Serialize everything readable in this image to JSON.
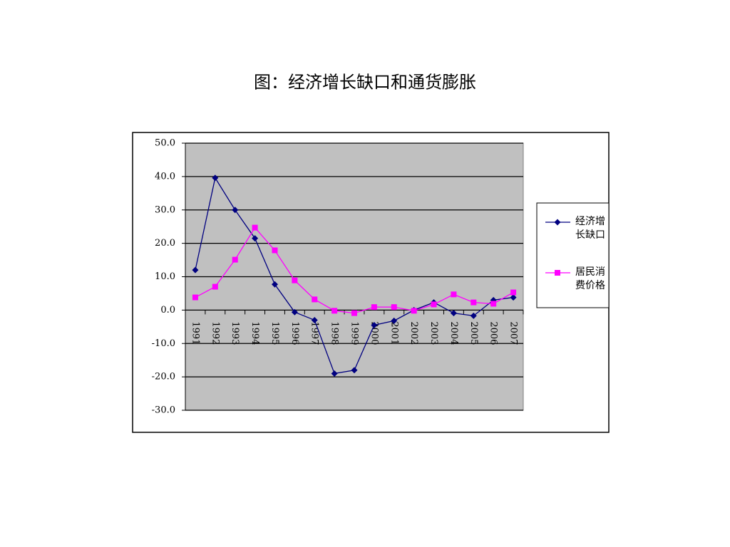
{
  "chart_data": {
    "type": "line",
    "title": "图：经济增长缺口和通货膨胀",
    "categories": [
      "1991",
      "1992",
      "1993",
      "1994",
      "1995",
      "1996",
      "1997",
      "1998",
      "1999",
      "2000",
      "2001",
      "2002",
      "2003",
      "2004",
      "2005",
      "2006",
      "2007"
    ],
    "series": [
      {
        "name": "经济增长缺口",
        "color": "#000080",
        "marker": "diamond",
        "values": [
          12,
          39.6,
          30,
          21.5,
          7.7,
          -0.6,
          -3,
          -19,
          -18,
          -4.5,
          -3.2,
          0,
          2.3,
          -0.9,
          -1.7,
          3,
          3.8
        ]
      },
      {
        "name": "居民消费价格",
        "color": "#ff00ff",
        "marker": "square",
        "values": [
          3.8,
          7,
          15.1,
          24.7,
          17.9,
          8.9,
          3.2,
          -0.2,
          -0.9,
          0.9,
          0.9,
          -0.2,
          1.7,
          4.7,
          2.3,
          1.9,
          5.3
        ]
      }
    ],
    "ylim": [
      -30,
      50
    ],
    "yticks": [
      {
        "value": -30,
        "label": "-30.0"
      },
      {
        "value": -20,
        "label": "-20.0"
      },
      {
        "value": -10,
        "label": "-10.0"
      },
      {
        "value": 0,
        "label": "0.0"
      },
      {
        "value": 10,
        "label": "10.0"
      },
      {
        "value": 20,
        "label": "20.0"
      },
      {
        "value": 30,
        "label": "30.0"
      },
      {
        "value": 40,
        "label": "40.0"
      },
      {
        "value": 50,
        "label": "50.0"
      }
    ],
    "grid": true,
    "legend": "right",
    "plot_background": "#c0c0c0"
  }
}
